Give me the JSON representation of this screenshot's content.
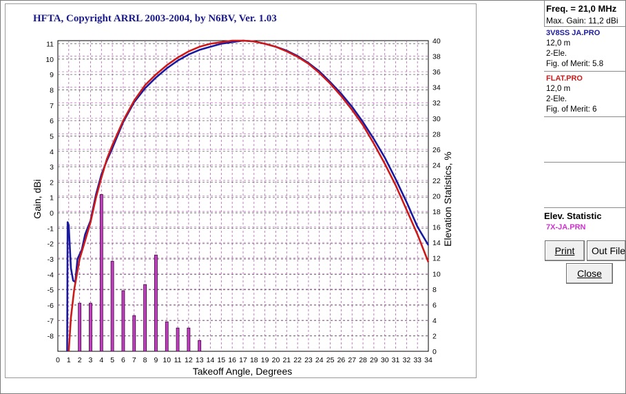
{
  "chart_data": {
    "type": "line",
    "title": "HFTA, Copyright ARRL 2003-2004, by N6BV, Ver. 1.03",
    "xlabel": "Takeoff Angle, Degrees",
    "ylabel": "Gain, dBi",
    "y2label": "Elevation Statistics, %",
    "xlim": [
      0,
      34
    ],
    "ylim": [
      -9,
      11.2
    ],
    "y2lim": [
      0,
      40
    ],
    "x_ticks": [
      0,
      1,
      2,
      3,
      4,
      5,
      6,
      7,
      8,
      9,
      10,
      11,
      12,
      13,
      14,
      15,
      16,
      17,
      18,
      19,
      20,
      21,
      22,
      23,
      24,
      25,
      26,
      27,
      28,
      29,
      30,
      31,
      32,
      33,
      34
    ],
    "y_ticks": [
      11,
      10,
      9,
      8,
      7,
      6,
      5,
      4,
      3,
      2,
      1,
      0,
      -1,
      -2,
      -3,
      -4,
      -5,
      -6,
      -7,
      -8
    ],
    "y2_ticks": [
      40,
      38,
      36,
      34,
      32,
      30,
      28,
      26,
      24,
      22,
      20,
      18,
      16,
      14,
      12,
      10,
      8,
      6,
      4,
      2,
      0
    ],
    "grid": true,
    "series": [
      {
        "name": "3V8SS JA.PRO",
        "color": "#1a1aa0",
        "x": [
          0.85,
          0.9,
          1,
          1.2,
          1.4,
          1.6,
          1.8,
          2,
          2.2,
          2.5,
          3,
          3.5,
          4,
          4.5,
          5,
          6,
          7,
          8,
          9,
          10,
          11,
          12,
          13,
          14,
          15,
          16,
          17,
          18,
          19,
          20,
          21,
          22,
          23,
          24,
          25,
          26,
          27,
          28,
          29,
          30,
          31,
          32,
          33,
          34
        ],
        "y": [
          -9,
          -0.6,
          -0.8,
          -3.6,
          -4.4,
          -4.5,
          -3,
          -2.7,
          -2.4,
          -1.4,
          -0.5,
          1.2,
          2.5,
          3.4,
          4.2,
          5.9,
          7.2,
          8.1,
          8.8,
          9.4,
          9.9,
          10.3,
          10.6,
          10.8,
          11,
          11.1,
          11.2,
          11.15,
          11,
          10.8,
          10.55,
          10.2,
          9.75,
          9.2,
          8.5,
          7.75,
          6.9,
          5.9,
          4.8,
          3.6,
          2.2,
          0.7,
          -0.9,
          -2.1
        ]
      },
      {
        "name": "FLAT.PRO",
        "color": "#cc1a1a",
        "x": [
          1,
          1.2,
          1.5,
          2,
          2.5,
          3,
          3.5,
          4,
          4.5,
          5,
          6,
          7,
          8,
          9,
          10,
          11,
          12,
          13,
          14,
          15,
          16,
          17,
          18,
          19,
          20,
          21,
          22,
          23,
          24,
          25,
          26,
          27,
          28,
          29,
          30,
          31,
          32,
          33,
          34
        ],
        "y": [
          -9,
          -6.8,
          -5,
          -3,
          -1.8,
          -0.6,
          1,
          2.3,
          3.5,
          4.4,
          6,
          7.3,
          8.3,
          9,
          9.6,
          10.1,
          10.5,
          10.8,
          11,
          11.1,
          11.2,
          11.2,
          11.15,
          11,
          10.8,
          10.5,
          10.15,
          9.7,
          9.1,
          8.4,
          7.6,
          6.7,
          5.7,
          4.5,
          3.2,
          1.8,
          0.2,
          -1.4,
          -3.2
        ]
      }
    ],
    "bars": {
      "name": "7X-JA.PRN",
      "color": "#c040c0",
      "axis": "y2",
      "x": [
        2,
        3,
        4,
        5,
        6,
        7,
        8,
        9,
        10,
        11,
        12,
        13
      ],
      "values": [
        6.2,
        6.2,
        20.2,
        11.6,
        7.8,
        4.6,
        8.6,
        12.4,
        3.8,
        3.0,
        3.0,
        1.4
      ]
    }
  },
  "side": {
    "freq": "Freq. = 21,0 MHz",
    "max_gain": "Max. Gain: 11,2 dBi",
    "antennas": [
      {
        "name": "3V8SS JA.PRO",
        "height": "12,0 m",
        "type": "2-Ele.",
        "merit_label": "Fig. of Merit:",
        "merit": "5.8",
        "color": "#1a1aa0"
      },
      {
        "name": "FLAT.PRO",
        "height": "12,0 m",
        "type": "2-Ele.",
        "merit_label": "Fig. of Merit:",
        "merit": "6",
        "color": "#cc1a1a"
      }
    ],
    "elev_title": "Elev. Statistic",
    "elev_file": "7X-JA.PRN",
    "print_label": "Print",
    "outfile_label": "Out File",
    "close_label": "Close"
  }
}
